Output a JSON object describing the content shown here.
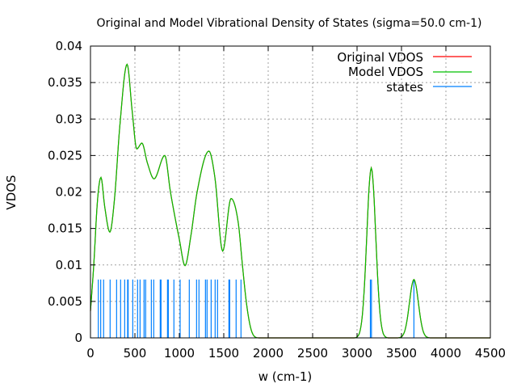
{
  "chart_data": {
    "type": "line",
    "title": "Original and Model Vibrational Density of States (sigma=50.0 cm-1)",
    "xlabel": "w (cm-1)",
    "ylabel": "VDOS",
    "xlim": [
      0,
      4500
    ],
    "ylim": [
      0,
      0.04
    ],
    "xticks": [
      "0",
      "500",
      "1000",
      "1500",
      "2000",
      "2500",
      "3000",
      "3500",
      "4000",
      "4500"
    ],
    "xtick_values": [
      0,
      500,
      1000,
      1500,
      2000,
      2500,
      3000,
      3500,
      4000,
      4500
    ],
    "yticks": [
      "0",
      "0.005",
      "0.01",
      "0.015",
      "0.02",
      "0.025",
      "0.03",
      "0.035",
      "0.04"
    ],
    "ytick_values": [
      0,
      0.005,
      0.01,
      0.015,
      0.02,
      0.025,
      0.03,
      0.035,
      0.04
    ],
    "grid": true,
    "legend_position": "top-right",
    "series": [
      {
        "name": "Original VDOS",
        "color": "#ff0000",
        "kind": "line"
      },
      {
        "name": "Model VDOS",
        "color": "#00c000",
        "kind": "line"
      },
      {
        "name": "states",
        "color": "#0080ff",
        "kind": "impulses"
      }
    ],
    "vdos_points": [
      [
        0,
        0.0037
      ],
      [
        36,
        0.0098
      ],
      [
        80,
        0.019
      ],
      [
        118,
        0.022
      ],
      [
        160,
        0.018
      ],
      [
        218,
        0.0145
      ],
      [
        270,
        0.019
      ],
      [
        330,
        0.029
      ],
      [
        412,
        0.0375
      ],
      [
        470,
        0.031
      ],
      [
        521,
        0.0259
      ],
      [
        579,
        0.0267
      ],
      [
        640,
        0.024
      ],
      [
        715,
        0.0218
      ],
      [
        836,
        0.025
      ],
      [
        900,
        0.02
      ],
      [
        1000,
        0.0135
      ],
      [
        1064,
        0.0099
      ],
      [
        1130,
        0.014
      ],
      [
        1200,
        0.02
      ],
      [
        1333,
        0.0256
      ],
      [
        1400,
        0.022
      ],
      [
        1488,
        0.0119
      ],
      [
        1582,
        0.0191
      ],
      [
        1664,
        0.0157
      ],
      [
        1709,
        0.0101
      ],
      [
        1755,
        0.0048
      ],
      [
        1800,
        0.0015
      ],
      [
        1845,
        0.0002
      ],
      [
        1900,
        0
      ],
      [
        2960,
        0
      ],
      [
        3010,
        0.00026
      ],
      [
        3035,
        0.00102
      ],
      [
        3060,
        0.00315
      ],
      [
        3085,
        0.00757
      ],
      [
        3110,
        0.01413
      ],
      [
        3135,
        0.02056
      ],
      [
        3160,
        0.0233
      ],
      [
        3185,
        0.02056
      ],
      [
        3210,
        0.01413
      ],
      [
        3235,
        0.00757
      ],
      [
        3260,
        0.00315
      ],
      [
        3285,
        0.00102
      ],
      [
        3310,
        0.00026
      ],
      [
        3360,
        0
      ],
      [
        3440,
        0
      ],
      [
        3490,
        9e-05
      ],
      [
        3515,
        0.00035
      ],
      [
        3540,
        0.00108
      ],
      [
        3565,
        0.0026
      ],
      [
        3590,
        0.00485
      ],
      [
        3615,
        0.00706
      ],
      [
        3640,
        0.008
      ],
      [
        3665,
        0.00706
      ],
      [
        3690,
        0.00485
      ],
      [
        3715,
        0.0026
      ],
      [
        3740,
        0.00108
      ],
      [
        3765,
        0.00035
      ],
      [
        3790,
        9e-05
      ],
      [
        3840,
        0
      ],
      [
        4500,
        0
      ]
    ],
    "states_height": 0.008,
    "states": [
      88,
      115,
      148,
      221,
      294,
      339,
      385,
      418,
      424,
      476,
      530,
      558,
      603,
      621,
      685,
      712,
      785,
      794,
      867,
      876,
      939,
      1009,
      1112,
      1194,
      1221,
      1294,
      1312,
      1358,
      1403,
      1430,
      1558,
      1567,
      1639,
      1694,
      3150,
      3162,
      3640
    ]
  }
}
